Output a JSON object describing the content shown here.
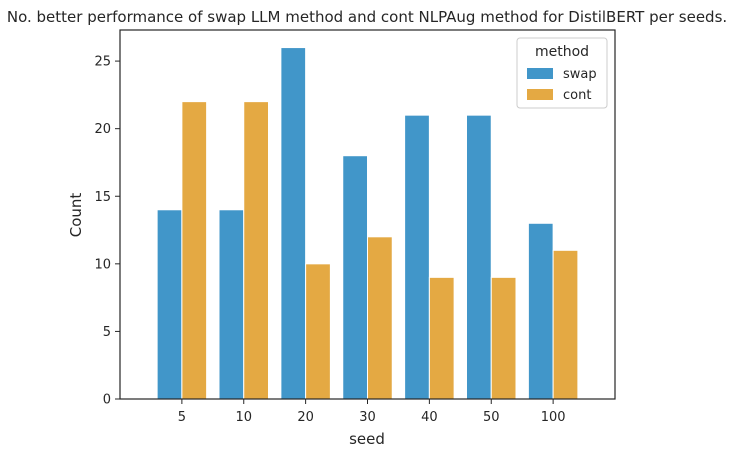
{
  "chart_data": {
    "type": "bar",
    "title": "No. better performance of swap LLM method and cont NLPAug method for DistilBERT per seeds.",
    "xlabel": "seed",
    "ylabel": "Count",
    "categories": [
      "5",
      "10",
      "20",
      "30",
      "40",
      "50",
      "100"
    ],
    "series": [
      {
        "name": "swap",
        "color": "#4196c9",
        "values": [
          14,
          14,
          26,
          18,
          21,
          21,
          13
        ]
      },
      {
        "name": "cont",
        "color": "#e4a943",
        "values": [
          22,
          22,
          10,
          12,
          9,
          9,
          11
        ]
      }
    ],
    "ylim": [
      0,
      27.3
    ],
    "yticks": [
      0,
      5,
      10,
      15,
      20,
      25
    ],
    "grid": false,
    "legend": {
      "title": "method",
      "placement": "top-right"
    }
  }
}
